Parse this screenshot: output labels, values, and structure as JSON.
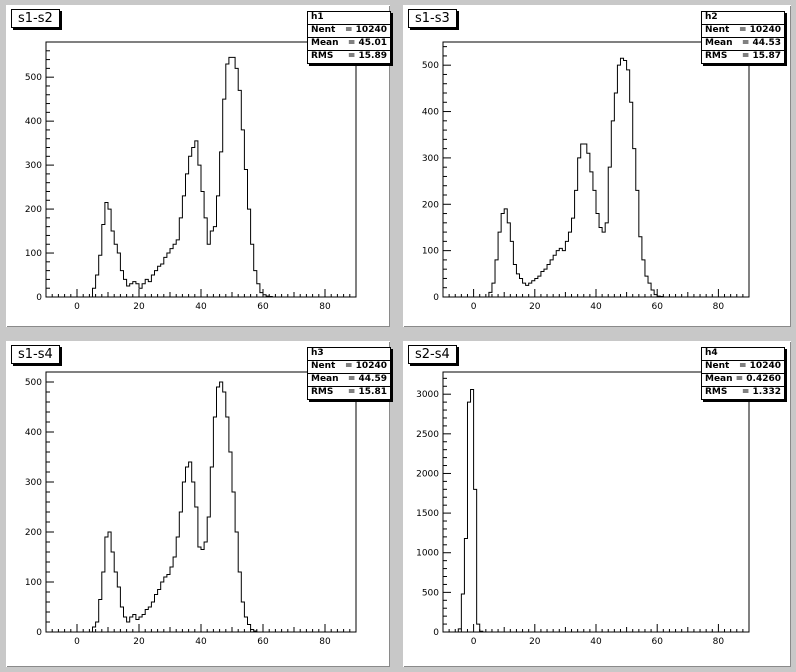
{
  "chart_data": [
    {
      "type": "bar",
      "title": "s1-s2",
      "stats": {
        "name": "h1",
        "rows": [
          [
            "Nent",
            "= 10240"
          ],
          [
            "Mean",
            "=  45.01"
          ],
          [
            "RMS",
            "=  15.89"
          ]
        ]
      },
      "xlim": [
        -10,
        90
      ],
      "ylim": [
        0,
        580
      ],
      "xticks": [
        0,
        20,
        40,
        60,
        80
      ],
      "yticks": [
        0,
        100,
        200,
        300,
        400,
        500
      ],
      "x": [
        6,
        7,
        8,
        9,
        10,
        11,
        12,
        13,
        14,
        15,
        16,
        17,
        18,
        19,
        20,
        21,
        22,
        23,
        24,
        25,
        26,
        27,
        28,
        29,
        30,
        31,
        32,
        33,
        34,
        35,
        36,
        37,
        38,
        39,
        40,
        41,
        42,
        43,
        44,
        45,
        46,
        47,
        48,
        49,
        50,
        51,
        52,
        53,
        54,
        55,
        56,
        57,
        58,
        59,
        60,
        61,
        62,
        63,
        64,
        65,
        66,
        67,
        68,
        69,
        70
      ],
      "values": [
        20,
        50,
        95,
        165,
        215,
        200,
        150,
        120,
        100,
        60,
        40,
        25,
        30,
        35,
        30,
        20,
        30,
        40,
        35,
        50,
        60,
        70,
        75,
        90,
        100,
        110,
        120,
        130,
        180,
        230,
        280,
        320,
        340,
        355,
        300,
        240,
        180,
        120,
        150,
        160,
        230,
        330,
        450,
        530,
        545,
        545,
        520,
        470,
        380,
        290,
        200,
        120,
        60,
        30,
        10,
        5,
        2,
        1,
        0,
        0,
        0,
        0,
        0,
        0,
        0
      ],
      "x_start": 5
    },
    {
      "type": "bar",
      "title": "s1-s3",
      "stats": {
        "name": "h2",
        "rows": [
          [
            "Nent",
            "= 10240"
          ],
          [
            "Mean",
            "=  44.53"
          ],
          [
            "RMS",
            "=  15.87"
          ]
        ]
      },
      "xlim": [
        -10,
        90
      ],
      "ylim": [
        0,
        550
      ],
      "xticks": [
        0,
        20,
        40,
        60,
        80
      ],
      "yticks": [
        0,
        100,
        200,
        300,
        400,
        500
      ],
      "x": [
        6,
        7,
        8,
        9,
        10,
        11,
        12,
        13,
        14,
        15,
        16,
        17,
        18,
        19,
        20,
        21,
        22,
        23,
        24,
        25,
        26,
        27,
        28,
        29,
        30,
        31,
        32,
        33,
        34,
        35,
        36,
        37,
        38,
        39,
        40,
        41,
        42,
        43,
        44,
        45,
        46,
        47,
        48,
        49,
        50,
        51,
        52,
        53,
        54,
        55,
        56,
        57,
        58,
        59,
        60,
        61,
        62,
        63,
        64,
        65,
        66,
        67,
        68,
        69,
        70
      ],
      "values": [
        10,
        30,
        80,
        140,
        180,
        190,
        160,
        120,
        70,
        50,
        40,
        30,
        25,
        30,
        35,
        40,
        45,
        55,
        60,
        70,
        80,
        90,
        100,
        105,
        100,
        120,
        140,
        170,
        230,
        300,
        330,
        330,
        310,
        270,
        230,
        180,
        150,
        140,
        160,
        280,
        380,
        440,
        500,
        515,
        510,
        490,
        420,
        320,
        230,
        130,
        80,
        45,
        30,
        15,
        5,
        2,
        1,
        0,
        0,
        0,
        0,
        0,
        0,
        0,
        0
      ],
      "x_start": 5
    },
    {
      "type": "bar",
      "title": "s1-s4",
      "stats": {
        "name": "h3",
        "rows": [
          [
            "Nent",
            "= 10240"
          ],
          [
            "Mean",
            "=  44.59"
          ],
          [
            "RMS",
            "=  15.81"
          ]
        ]
      },
      "xlim": [
        -10,
        90
      ],
      "ylim": [
        0,
        520
      ],
      "xticks": [
        0,
        20,
        40,
        60,
        80
      ],
      "yticks": [
        0,
        100,
        200,
        300,
        400,
        500
      ],
      "x": [
        6,
        7,
        8,
        9,
        10,
        11,
        12,
        13,
        14,
        15,
        16,
        17,
        18,
        19,
        20,
        21,
        22,
        23,
        24,
        25,
        26,
        27,
        28,
        29,
        30,
        31,
        32,
        33,
        34,
        35,
        36,
        37,
        38,
        39,
        40,
        41,
        42,
        43,
        44,
        45,
        46,
        47,
        48,
        49,
        50,
        51,
        52,
        53,
        54,
        55,
        56,
        57,
        58,
        59,
        60,
        61,
        62,
        63,
        64,
        65,
        66,
        67,
        68,
        69,
        70
      ],
      "values": [
        10,
        20,
        65,
        120,
        190,
        200,
        160,
        120,
        90,
        50,
        30,
        20,
        30,
        35,
        25,
        30,
        35,
        45,
        50,
        60,
        75,
        85,
        100,
        110,
        115,
        130,
        150,
        190,
        240,
        300,
        330,
        340,
        300,
        250,
        170,
        165,
        180,
        230,
        330,
        430,
        490,
        500,
        480,
        430,
        360,
        280,
        200,
        120,
        60,
        30,
        15,
        5,
        2,
        0,
        0,
        0,
        0,
        0,
        0,
        0,
        0,
        0,
        0,
        0,
        0
      ],
      "x_start": 5
    },
    {
      "type": "bar",
      "title": "s2-s4",
      "stats": {
        "name": "h4",
        "rows": [
          [
            "Nent",
            "= 10240"
          ],
          [
            "Mean",
            "=  0.4260"
          ],
          [
            "RMS",
            "=  1.332"
          ]
        ]
      },
      "xlim": [
        -10,
        90
      ],
      "ylim": [
        0,
        3280
      ],
      "xticks": [
        0,
        20,
        40,
        60,
        80
      ],
      "yticks": [
        0,
        500,
        1000,
        1500,
        2000,
        2500,
        3000
      ],
      "x": [
        -4,
        -3,
        -2,
        -1,
        0,
        1,
        2,
        3
      ],
      "values": [
        40,
        480,
        1180,
        2900,
        3060,
        1800,
        100,
        10
      ],
      "x_start": -5
    }
  ]
}
